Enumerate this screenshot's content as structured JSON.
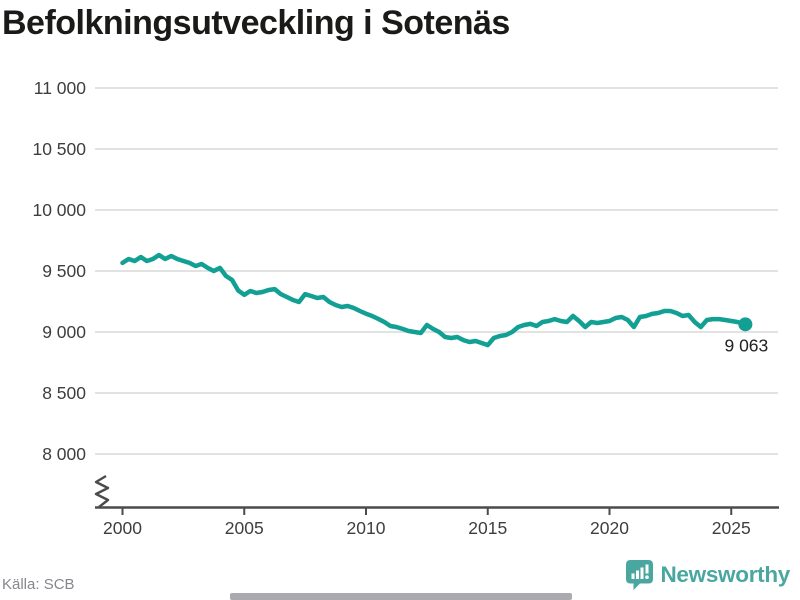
{
  "title": "Befolkningsutveckling i Sotenäs",
  "footer": {
    "source": "Källa: SCB",
    "logo_text": "Newsworthy"
  },
  "colors": {
    "line": "#12a094",
    "logo": "#4aa7a0",
    "grid": "#e2e2e2",
    "axis": "#4b4b4b",
    "tick_label": "#3e3e3e",
    "title": "#1a1a18",
    "source_text": "#86868e",
    "end_label": "#222222"
  },
  "chart_data": {
    "type": "line",
    "title": "Befolkningsutveckling i Sotenäs",
    "xlabel": "",
    "ylabel": "",
    "x_ticks": [
      2000,
      2005,
      2010,
      2015,
      2020,
      2025
    ],
    "y_ticks": [
      {
        "value": 11000,
        "label": "11 000"
      },
      {
        "value": 10500,
        "label": "10 500"
      },
      {
        "value": 10000,
        "label": "10 000"
      },
      {
        "value": 9500,
        "label": "9 500"
      },
      {
        "value": 9000,
        "label": "9 000"
      },
      {
        "value": 8500,
        "label": "8 500"
      },
      {
        "value": 8000,
        "label": "8 000"
      }
    ],
    "ylim": [
      8000,
      11000
    ],
    "xlim": [
      1998.9,
      2026.9
    ],
    "grid": "horizontal",
    "axis_break_bottom_left": true,
    "legend": "none",
    "series": [
      {
        "name": "Folkmängd",
        "color": "#12a094",
        "points": [
          [
            2000.0,
            9566
          ],
          [
            2000.25,
            9598
          ],
          [
            2000.5,
            9582
          ],
          [
            2000.75,
            9615
          ],
          [
            2001.0,
            9582
          ],
          [
            2001.25,
            9598
          ],
          [
            2001.5,
            9631
          ],
          [
            2001.75,
            9598
          ],
          [
            2002.0,
            9623
          ],
          [
            2002.25,
            9598
          ],
          [
            2002.5,
            9582
          ],
          [
            2002.75,
            9566
          ],
          [
            2003.0,
            9541
          ],
          [
            2003.25,
            9557
          ],
          [
            2003.5,
            9525
          ],
          [
            2003.75,
            9500
          ],
          [
            2004.0,
            9525
          ],
          [
            2004.25,
            9459
          ],
          [
            2004.5,
            9426
          ],
          [
            2004.75,
            9340
          ],
          [
            2005.0,
            9305
          ],
          [
            2005.25,
            9336
          ],
          [
            2005.5,
            9320
          ],
          [
            2005.75,
            9328
          ],
          [
            2006.0,
            9344
          ],
          [
            2006.25,
            9352
          ],
          [
            2006.5,
            9311
          ],
          [
            2006.75,
            9287
          ],
          [
            2007.0,
            9262
          ],
          [
            2007.25,
            9246
          ],
          [
            2007.5,
            9311
          ],
          [
            2007.75,
            9295
          ],
          [
            2008.0,
            9279
          ],
          [
            2008.25,
            9287
          ],
          [
            2008.5,
            9246
          ],
          [
            2008.75,
            9221
          ],
          [
            2009.0,
            9205
          ],
          [
            2009.25,
            9213
          ],
          [
            2009.5,
            9197
          ],
          [
            2009.75,
            9172
          ],
          [
            2010.0,
            9150
          ],
          [
            2010.25,
            9131
          ],
          [
            2010.5,
            9107
          ],
          [
            2010.75,
            9082
          ],
          [
            2011.0,
            9049
          ],
          [
            2011.25,
            9041
          ],
          [
            2011.5,
            9025
          ],
          [
            2011.75,
            9008
          ],
          [
            2012.0,
            9000
          ],
          [
            2012.25,
            8992
          ],
          [
            2012.5,
            9057
          ],
          [
            2012.75,
            9025
          ],
          [
            2013.0,
            9000
          ],
          [
            2013.25,
            8959
          ],
          [
            2013.5,
            8951
          ],
          [
            2013.75,
            8959
          ],
          [
            2014.0,
            8934
          ],
          [
            2014.25,
            8918
          ],
          [
            2014.5,
            8926
          ],
          [
            2014.75,
            8910
          ],
          [
            2015.0,
            8893
          ],
          [
            2015.25,
            8951
          ],
          [
            2015.5,
            8967
          ],
          [
            2015.75,
            8975
          ],
          [
            2016.0,
            9000
          ],
          [
            2016.25,
            9041
          ],
          [
            2016.5,
            9057
          ],
          [
            2016.75,
            9066
          ],
          [
            2017.0,
            9049
          ],
          [
            2017.25,
            9082
          ],
          [
            2017.5,
            9090
          ],
          [
            2017.75,
            9106
          ],
          [
            2018.0,
            9090
          ],
          [
            2018.25,
            9082
          ],
          [
            2018.5,
            9131
          ],
          [
            2018.75,
            9090
          ],
          [
            2019.0,
            9041
          ],
          [
            2019.25,
            9082
          ],
          [
            2019.5,
            9074
          ],
          [
            2019.75,
            9082
          ],
          [
            2020.0,
            9090
          ],
          [
            2020.25,
            9115
          ],
          [
            2020.5,
            9123
          ],
          [
            2020.75,
            9098
          ],
          [
            2021.0,
            9041
          ],
          [
            2021.25,
            9123
          ],
          [
            2021.5,
            9131
          ],
          [
            2021.75,
            9148
          ],
          [
            2022.0,
            9156
          ],
          [
            2022.25,
            9172
          ],
          [
            2022.5,
            9172
          ],
          [
            2022.75,
            9156
          ],
          [
            2023.0,
            9131
          ],
          [
            2023.25,
            9139
          ],
          [
            2023.5,
            9082
          ],
          [
            2023.75,
            9041
          ],
          [
            2024.0,
            9098
          ],
          [
            2024.25,
            9106
          ],
          [
            2024.5,
            9106
          ],
          [
            2024.75,
            9098
          ],
          [
            2025.0,
            9090
          ],
          [
            2025.25,
            9082
          ],
          [
            2025.58,
            9063
          ]
        ]
      }
    ],
    "end_point": {
      "x": 2025.58,
      "value": 9063,
      "label": "9 063"
    }
  }
}
